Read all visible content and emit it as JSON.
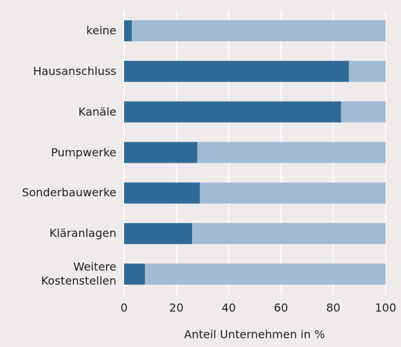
{
  "chart_data": {
    "type": "stacked-barh",
    "categories": [
      "keine",
      "Hausanschluss",
      "Kanäle",
      "Pumpwerke",
      "Sonderbauwerke",
      "Kläranlagen",
      "Weitere Kostenstellen"
    ],
    "series": [
      {
        "color": "#2f6b97",
        "values": [
          3,
          86,
          83,
          28,
          29,
          26,
          8
        ]
      },
      {
        "color": "#a4bad3",
        "values": [
          97,
          14,
          17,
          72,
          71,
          74,
          92
        ]
      }
    ],
    "xlim": [
      0,
      100
    ],
    "xticks": [
      0,
      20,
      40,
      60,
      80,
      100
    ],
    "xlabel": "Anteil Unternehmen in %",
    "grid": true
  }
}
